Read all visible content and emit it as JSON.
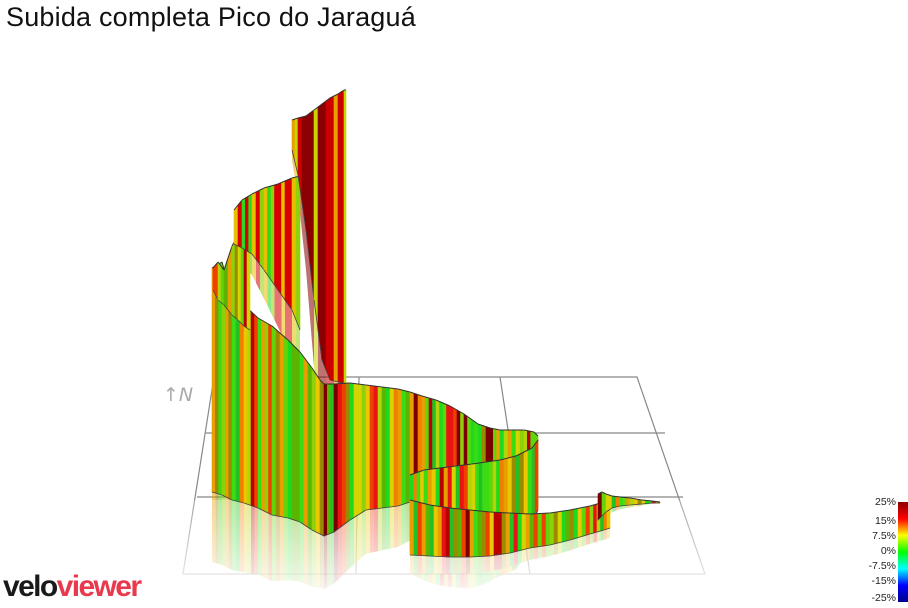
{
  "title": "Subida completa Pico do Jaraguá",
  "north_label": "↑N",
  "logo": {
    "part1": "velo",
    "part2": "viewer"
  },
  "colors": {
    "brand": "#e8394d",
    "grid": "#888888",
    "scale": [
      "#00008b",
      "#0000ff",
      "#00ffff",
      "#00ff00",
      "#ffff00",
      "#ff0000",
      "#8b0000"
    ]
  },
  "legend": {
    "ticks": [
      "25%",
      "15%",
      "7.5%",
      "0%",
      "-7.5%",
      "-15%",
      "-25%"
    ]
  },
  "chart_data": {
    "type": "3d-elevation-profile",
    "title": "Subida completa Pico do Jaraguá",
    "color_metric": "gradient",
    "color_scale_ticks": [
      25,
      15,
      7.5,
      0,
      -7.5,
      -15,
      -25
    ],
    "color_scale_units": "%"
  }
}
